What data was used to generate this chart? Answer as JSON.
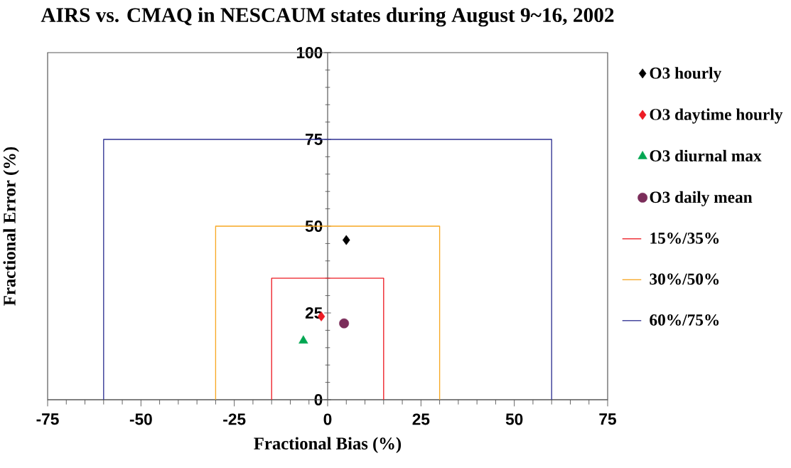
{
  "chart_data": {
    "type": "scatter",
    "title": "AIRS vs. CMAQ in NESCAUM states during August 9~16, 2002",
    "xlabel": "Fractional Bias (%)",
    "ylabel": "Fractional Error (%)",
    "xlim": [
      -75,
      75
    ],
    "xticks": [
      -75,
      -50,
      -25,
      0,
      25,
      50,
      75
    ],
    "ylim": [
      0,
      100
    ],
    "yticks": [
      0,
      25,
      50,
      75,
      100
    ],
    "legend": "right",
    "series": [
      {
        "name": "O3 hourly",
        "marker": "diamond",
        "color": "#000000",
        "x": [
          5
        ],
        "values": [
          46
        ]
      },
      {
        "name": "O3 daytime hourly",
        "marker": "diamond",
        "color": "#ed1c24",
        "x": [
          -1.7
        ],
        "values": [
          24
        ]
      },
      {
        "name": "O3 diurnal max",
        "marker": "triangle",
        "color": "#00a651",
        "x": [
          -6.5
        ],
        "values": [
          17
        ]
      },
      {
        "name": "O3 daily mean",
        "marker": "circle",
        "color": "#7b2d5a",
        "x": [
          4.4
        ],
        "values": [
          22
        ]
      },
      {
        "name": "15%/35%",
        "type": "line",
        "marker": "none",
        "line_style": "solid",
        "color": "#ed1c24",
        "x": [
          -15,
          -15,
          15,
          15
        ],
        "values": [
          0,
          35,
          35,
          0
        ]
      },
      {
        "name": "30%/50%",
        "type": "line",
        "marker": "none",
        "line_style": "solid",
        "color": "#f7a823",
        "x": [
          -30,
          -30,
          30,
          30
        ],
        "values": [
          0,
          50,
          50,
          0
        ]
      },
      {
        "name": "60%/75%",
        "type": "line",
        "marker": "none",
        "line_style": "solid",
        "color": "#2e3192",
        "x": [
          -60,
          -60,
          60,
          60
        ],
        "values": [
          0,
          75,
          75,
          0
        ]
      }
    ]
  }
}
